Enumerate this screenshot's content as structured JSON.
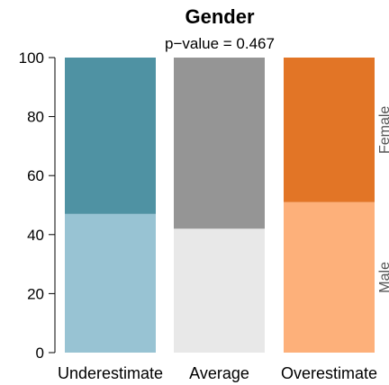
{
  "chart_data": {
    "type": "bar",
    "stacked": true,
    "title": "Gender",
    "subtitle": "p−value =  0.467",
    "categories": [
      "Underestimate",
      "Average",
      "Overestimate"
    ],
    "series": [
      {
        "name": "Male",
        "values": [
          47,
          42,
          51
        ]
      },
      {
        "name": "Female",
        "values": [
          53,
          58,
          49
        ]
      }
    ],
    "colors": {
      "Male": [
        "#98c3d3",
        "#e8e8e8",
        "#fdb07a"
      ],
      "Female": [
        "#4f92a3",
        "#959595",
        "#e27526"
      ]
    },
    "ylim": [
      0,
      100
    ],
    "yticks": [
      0,
      20,
      40,
      60,
      80,
      100
    ],
    "xlabel": "",
    "ylabel": "",
    "grid": false,
    "legend": "right-side-labels"
  }
}
